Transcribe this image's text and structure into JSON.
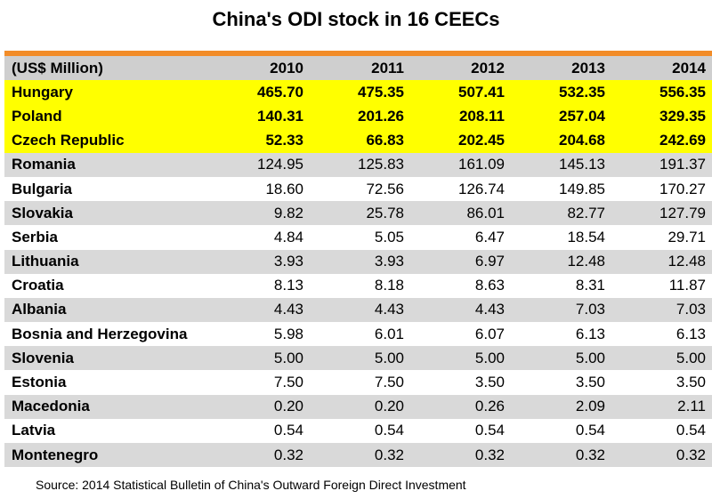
{
  "title": "China's ODI stock in 16 CEECs",
  "source": "Source: 2014 Statistical Bulletin of China's Outward Foreign Direct Investment",
  "colors": {
    "accent": "#f28c28",
    "highlight": "#ffff00",
    "stripe": "#d9d9d9",
    "header": "#cfcfcf"
  },
  "chart_data": {
    "type": "table",
    "title": "China's ODI stock in 16 CEECs",
    "unit_label": "(US$ Million)",
    "columns": [
      "2010",
      "2011",
      "2012",
      "2013",
      "2014"
    ],
    "rows": [
      {
        "country": "Hungary",
        "values": [
          "465.70",
          "475.35",
          "507.41",
          "532.35",
          "556.35"
        ],
        "highlight": true
      },
      {
        "country": "Poland",
        "values": [
          "140.31",
          "201.26",
          "208.11",
          "257.04",
          "329.35"
        ],
        "highlight": true
      },
      {
        "country": "Czech Republic",
        "values": [
          "52.33",
          "66.83",
          "202.45",
          "204.68",
          "242.69"
        ],
        "highlight": true
      },
      {
        "country": "Romania",
        "values": [
          "124.95",
          "125.83",
          "161.09",
          "145.13",
          "191.37"
        ],
        "highlight": false
      },
      {
        "country": "Bulgaria",
        "values": [
          "18.60",
          "72.56",
          "126.74",
          "149.85",
          "170.27"
        ],
        "highlight": false
      },
      {
        "country": "Slovakia",
        "values": [
          "9.82",
          "25.78",
          "86.01",
          "82.77",
          "127.79"
        ],
        "highlight": false
      },
      {
        "country": "Serbia",
        "values": [
          "4.84",
          "5.05",
          "6.47",
          "18.54",
          "29.71"
        ],
        "highlight": false
      },
      {
        "country": "Lithuania",
        "values": [
          "3.93",
          "3.93",
          "6.97",
          "12.48",
          "12.48"
        ],
        "highlight": false
      },
      {
        "country": "Croatia",
        "values": [
          "8.13",
          "8.18",
          "8.63",
          "8.31",
          "11.87"
        ],
        "highlight": false
      },
      {
        "country": "Albania",
        "values": [
          "4.43",
          "4.43",
          "4.43",
          "7.03",
          "7.03"
        ],
        "highlight": false
      },
      {
        "country": "Bosnia and Herzegovina",
        "values": [
          "5.98",
          "6.01",
          "6.07",
          "6.13",
          "6.13"
        ],
        "highlight": false
      },
      {
        "country": "Slovenia",
        "values": [
          "5.00",
          "5.00",
          "5.00",
          "5.00",
          "5.00"
        ],
        "highlight": false
      },
      {
        "country": "Estonia",
        "values": [
          "7.50",
          "7.50",
          "3.50",
          "3.50",
          "3.50"
        ],
        "highlight": false
      },
      {
        "country": "Macedonia",
        "values": [
          "0.20",
          "0.20",
          "0.26",
          "2.09",
          "2.11"
        ],
        "highlight": false
      },
      {
        "country": "Latvia",
        "values": [
          "0.54",
          "0.54",
          "0.54",
          "0.54",
          "0.54"
        ],
        "highlight": false
      },
      {
        "country": "Montenegro",
        "values": [
          "0.32",
          "0.32",
          "0.32",
          "0.32",
          "0.32"
        ],
        "highlight": false
      }
    ]
  }
}
